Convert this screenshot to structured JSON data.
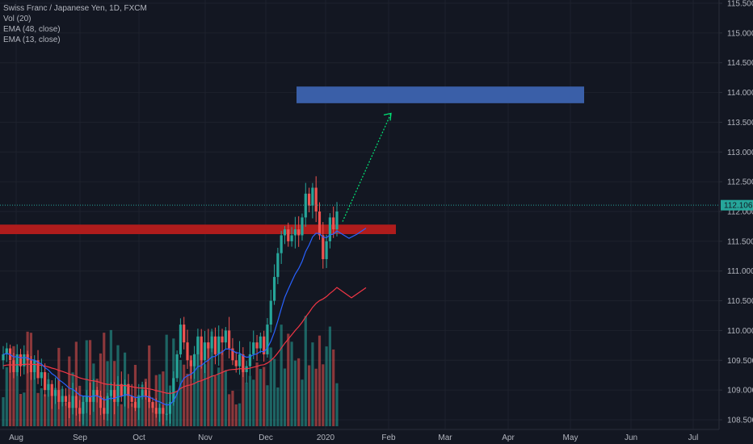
{
  "legend": {
    "title": "Swiss Franc / Japanese Yen, 1D, FXCM",
    "indicators": [
      "Vol (20)",
      "EMA (48, close)",
      "EMA (13, close)"
    ]
  },
  "current_price_label": "112.106",
  "colors": {
    "background": "#131722",
    "up": "#26a69a",
    "down": "#ef5350",
    "ema13": "#2962ff",
    "ema48": "#f23645",
    "resistance_zone": "#b71c1c",
    "target_zone": "#3a5fa8",
    "arrow": "#00e676",
    "price_line": "#26a69a"
  },
  "chart_data": {
    "type": "candlestick",
    "title": "Swiss Franc / Japanese Yen, 1D, FXCM",
    "x_ticks": [
      "Aug",
      "Sep",
      "Oct",
      "Nov",
      "Dec",
      "2020",
      "Feb",
      "Mar",
      "Apr",
      "May",
      "Jun",
      "Jul"
    ],
    "y_ticks": [
      "108.500",
      "109.000",
      "109.500",
      "110.000",
      "110.500",
      "111.000",
      "111.500",
      "112.000",
      "112.500",
      "113.000",
      "113.500",
      "114.000",
      "114.500",
      "115.000",
      "115.500"
    ],
    "ylim": [
      108.4,
      115.5
    ],
    "current_price": 112.106,
    "ohlc_closes": [
      109.6,
      109.7,
      109.5,
      109.3,
      109.6,
      109.4,
      109.6,
      109.5,
      109.3,
      109.5,
      109.2,
      109.3,
      109.0,
      109.1,
      108.9,
      109.0,
      108.8,
      108.9,
      108.8,
      108.7,
      108.9,
      108.7,
      108.6,
      108.8,
      108.9,
      108.8,
      109.0,
      108.9,
      108.7,
      108.6,
      108.9,
      109.0,
      108.8,
      109.1,
      108.9,
      109.1,
      108.9,
      108.8,
      108.7,
      108.9,
      109.0,
      108.9,
      108.8,
      108.7,
      108.6,
      108.7,
      108.6,
      108.6,
      108.8,
      109.2,
      109.6,
      110.1,
      109.8,
      109.5,
      109.4,
      109.6,
      109.9,
      109.5,
      109.8,
      109.7,
      109.9,
      109.6,
      109.9,
      109.8,
      110.0,
      109.7,
      109.5,
      109.4,
      109.6,
      109.3,
      109.4,
      109.6,
      109.8,
      109.7,
      109.9,
      109.6,
      110.1,
      110.5,
      110.9,
      111.3,
      111.6,
      111.7,
      111.5,
      111.6,
      111.7,
      111.6,
      111.9,
      112.3,
      112.1,
      112.4,
      112.0,
      111.6,
      111.2,
      111.5,
      111.9,
      111.7,
      112.0
    ],
    "volume_note": "Vol (20)",
    "ema13_label": "EMA (13, close)",
    "ema48_label": "EMA (48, close)",
    "annotations": [
      {
        "type": "zone",
        "name": "resistance-zone",
        "y_from": 111.65,
        "y_to": 111.78,
        "x_from_month": "Aug",
        "x_to": "Feb"
      },
      {
        "type": "zone",
        "name": "target-zone",
        "y_from": 113.85,
        "y_to": 114.1,
        "x_from": "Dec",
        "x_to": "May"
      },
      {
        "type": "arrow",
        "name": "target-arrow",
        "from_price": 111.8,
        "to_price": 113.65
      }
    ]
  }
}
